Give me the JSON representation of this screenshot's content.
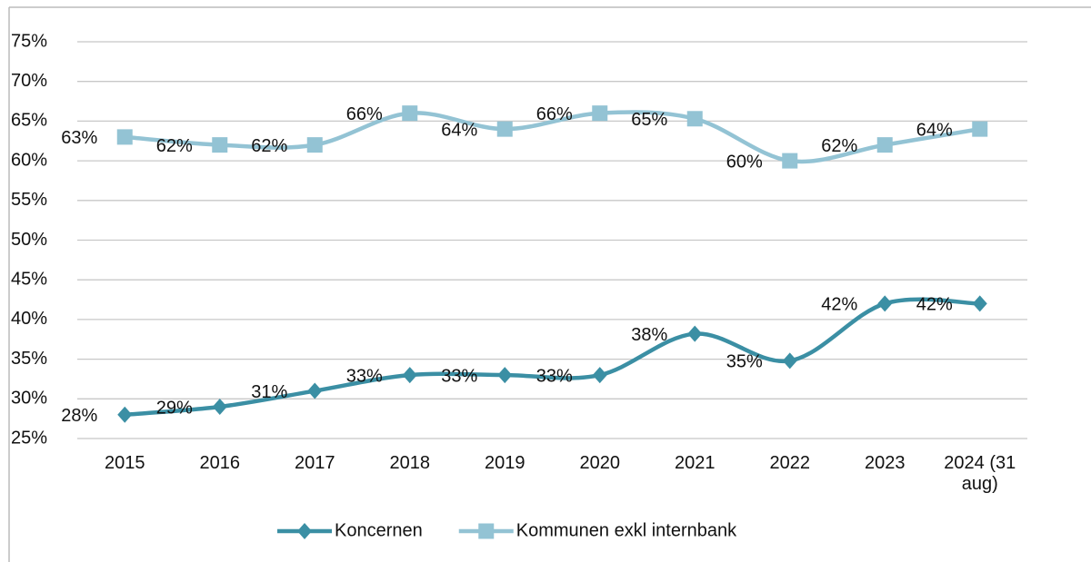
{
  "chart_data": {
    "type": "line",
    "categories": [
      "2015",
      "2016",
      "2017",
      "2018",
      "2019",
      "2020",
      "2021",
      "2022",
      "2023",
      "2024 (31 aug)"
    ],
    "series": [
      {
        "name": "Koncernen",
        "color": "#3b8fa4",
        "marker": "diamond",
        "values": [
          28,
          29,
          31,
          33,
          33,
          33,
          38.2,
          34.8,
          42,
          42
        ],
        "value_labels": [
          "28%",
          "29%",
          "31%",
          "33%",
          "33%",
          "33%",
          "38%",
          "35%",
          "42%",
          "42%"
        ]
      },
      {
        "name": "Kommunen exkl internbank",
        "color": "#93c3d4",
        "marker": "square",
        "values": [
          63,
          62,
          62,
          66,
          64,
          66,
          65.3,
          60,
          62,
          64
        ],
        "value_labels": [
          "63%",
          "62%",
          "62%",
          "66%",
          "64%",
          "66%",
          "65%",
          "60%",
          "62%",
          "64%"
        ]
      }
    ],
    "ylim": [
      25,
      75
    ],
    "yticks": [
      {
        "value": 25,
        "label": "25%"
      },
      {
        "value": 30,
        "label": "30%"
      },
      {
        "value": 35,
        "label": "35%"
      },
      {
        "value": 40,
        "label": "40%"
      },
      {
        "value": 45,
        "label": "45%"
      },
      {
        "value": 50,
        "label": "50%"
      },
      {
        "value": 55,
        "label": "55%"
      },
      {
        "value": 60,
        "label": "60%"
      },
      {
        "value": 65,
        "label": "65%"
      },
      {
        "value": 70,
        "label": "70%"
      },
      {
        "value": 75,
        "label": "75%"
      }
    ],
    "grid": true,
    "legend": "bottom"
  }
}
